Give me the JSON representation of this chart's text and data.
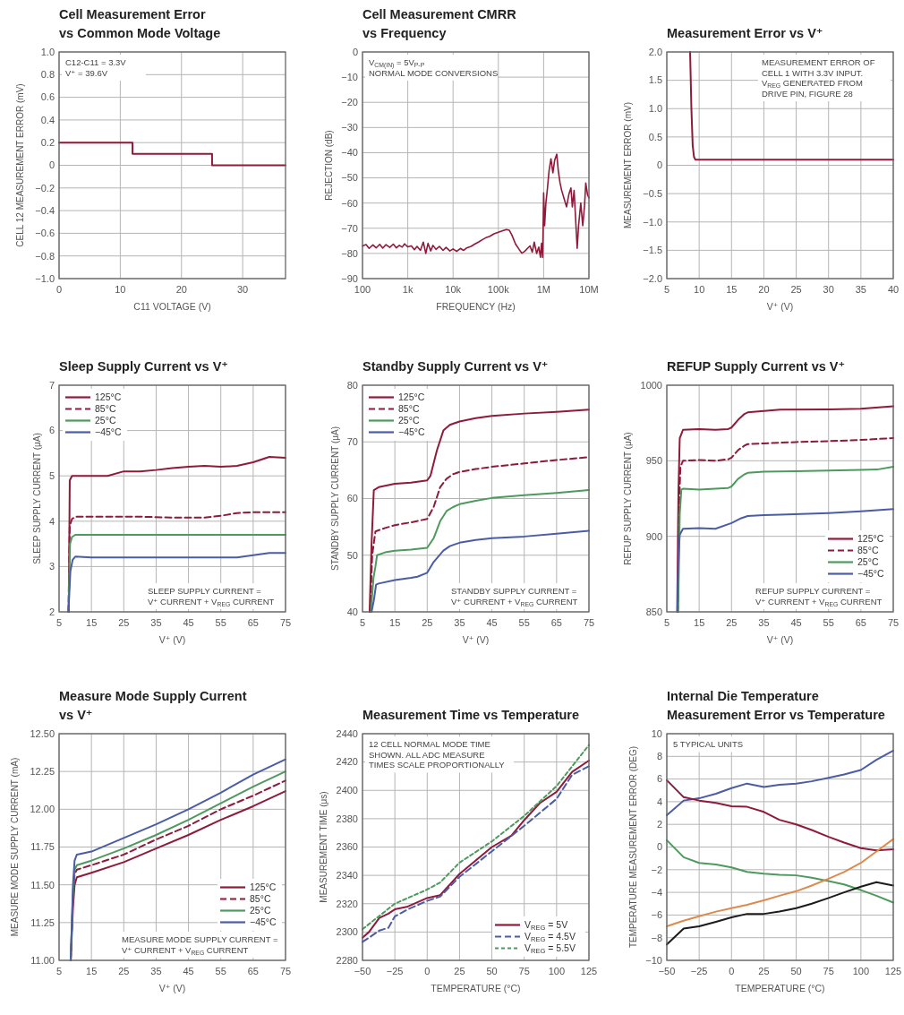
{
  "chart_data": [
    {
      "type": "step",
      "title": "Cell Measurement Error\nvs Common Mode Voltage",
      "xlabel": "C11 VOLTAGE (V)",
      "ylabel": "CELL 12 MEASUREMENT ERROR (mV)",
      "x": [
        0,
        12,
        25,
        37
      ],
      "series": [
        {
          "color": "#8e1b3b",
          "values": [
            0.2,
            0.1,
            0,
            0
          ]
        }
      ],
      "xlim": [
        0,
        37
      ],
      "xticks": [
        0,
        10,
        20,
        30
      ],
      "ylim": [
        -1,
        1
      ],
      "yticks": [
        {
          "value": 1,
          "label": "1.0"
        },
        0.8,
        0.6,
        0.4,
        0.2,
        0,
        {
          "value": -0.2,
          "label": "−0.2"
        },
        {
          "value": -0.4,
          "label": "−0.4"
        },
        {
          "value": -0.6,
          "label": "−0.6"
        },
        {
          "value": -0.8,
          "label": "−0.8"
        },
        {
          "value": -1,
          "label": "−1.0"
        }
      ],
      "grid": true,
      "annotations": [
        "C12-C11 = 3.3V\nV⁺ = 39.6V"
      ]
    },
    {
      "type": "line",
      "title": "Cell Measurement CMRR\nvs Frequency",
      "xlabel": "FREQUENCY (Hz)",
      "ylabel": "REJECTION (dB)",
      "log": "x",
      "x": [
        100,
        120,
        140,
        170,
        200,
        240,
        280,
        330,
        400,
        480,
        560,
        650,
        750,
        850,
        1000,
        1200,
        1400,
        1600,
        1900,
        2200,
        2500,
        2800,
        3200,
        3600,
        4200,
        5000,
        6000,
        7000,
        8500,
        10000,
        12000,
        14500,
        17000,
        20000,
        25000,
        30000,
        37000,
        45000,
        55000,
        65000,
        80000,
        100000,
        125000,
        150000,
        175000,
        200000,
        240000,
        290000,
        330000,
        380000,
        440000,
        500000,
        560000,
        620000,
        700000,
        780000,
        850000,
        900000,
        950000,
        1000000,
        1050000,
        1120000,
        1200000,
        1320000,
        1450000,
        1600000,
        1750000,
        1950000,
        2100000,
        2300000,
        2500000,
        2800000,
        3200000,
        3600000,
        4000000,
        4300000,
        4700000,
        5000000,
        5500000,
        5900000,
        6600000,
        7300000,
        8000000,
        8500000,
        9300000,
        10000000
      ],
      "series": [
        {
          "color": "#8e1b3b",
          "values": [
            -77,
            -76.5,
            -78,
            -76.6,
            -77.8,
            -76.4,
            -77.9,
            -76.5,
            -77.6,
            -76.3,
            -77.8,
            -76.8,
            -77.5,
            -76.2,
            -77.4,
            -77,
            -78.5,
            -77.2,
            -78.8,
            -75.5,
            -80,
            -76,
            -79,
            -76.8,
            -78.4,
            -77.2,
            -78.8,
            -77.6,
            -79,
            -78.2,
            -79.2,
            -78,
            -78.8,
            -77.8,
            -77.2,
            -76.3,
            -75.4,
            -74.5,
            -73.6,
            -73.2,
            -72.2,
            -71.6,
            -71,
            -70.5,
            -70.8,
            -72.8,
            -76.3,
            -78.5,
            -79.9,
            -79.2,
            -78,
            -77,
            -79.5,
            -75.5,
            -80,
            -77.5,
            -81.5,
            -76,
            -81.6,
            -56,
            -69,
            -60,
            -55,
            -47,
            -42.4,
            -48,
            -43,
            -40.6,
            -47,
            -52,
            -55,
            -58,
            -61.5,
            -56.6,
            -54,
            -61.5,
            -55,
            -64,
            -78,
            -69,
            -60,
            -69,
            -61,
            -52,
            -56.6,
            -58
          ]
        }
      ],
      "xlim": [
        100,
        10000000
      ],
      "xticks": [
        100,
        {
          "value": 1000,
          "label": "1k"
        },
        {
          "value": 10000,
          "label": "10k"
        },
        {
          "value": 100000,
          "label": "100k"
        },
        {
          "value": 1000000,
          "label": "1M"
        },
        {
          "value": 10000000,
          "label": "10M"
        }
      ],
      "ylim": [
        -90,
        0
      ],
      "yticks": [
        0,
        {
          "value": -10,
          "label": "−10"
        },
        {
          "value": -20,
          "label": "−20"
        },
        {
          "value": -30,
          "label": "−30"
        },
        {
          "value": -40,
          "label": "−40"
        },
        {
          "value": -50,
          "label": "−50"
        },
        {
          "value": -60,
          "label": "−60"
        },
        {
          "value": -70,
          "label": "−70"
        },
        {
          "value": -80,
          "label": "−80"
        },
        {
          "value": -90,
          "label": "−90"
        }
      ],
      "grid": true,
      "annotations": [
        "V$_{CM(IN)}$ = 5V$_{P-P}$\nNORMAL MODE CONVERSIONS"
      ]
    },
    {
      "type": "line",
      "title": "Measurement Error vs V⁺",
      "xlabel": "V⁺ (V)",
      "ylabel": "MEASUREMENT ERROR (mV)",
      "x": [
        8.6,
        8.8,
        9.0,
        9.2,
        9.4,
        40
      ],
      "series": [
        {
          "color": "#8e1b3b",
          "values": [
            2.0,
            1.0,
            0.35,
            0.15,
            0.1,
            0.1
          ]
        }
      ],
      "xlim": [
        5,
        40
      ],
      "xticks": [
        5,
        10,
        15,
        20,
        25,
        30,
        35,
        40
      ],
      "ylim": [
        -2,
        2
      ],
      "yticks": [
        {
          "value": 2,
          "label": "2.0"
        },
        1.5,
        {
          "value": 1,
          "label": "1.0"
        },
        0.5,
        0,
        {
          "value": -0.5,
          "label": "−0.5"
        },
        {
          "value": -1,
          "label": "−1.0"
        },
        {
          "value": -1.5,
          "label": "−1.5"
        },
        {
          "value": -2,
          "label": "−2.0"
        }
      ],
      "grid": true,
      "annotations": [
        "MEASUREMENT ERROR OF\nCELL 1 WITH 3.3V INPUT.\nV$_{REG}$ GENERATED FROM\nDRIVE PIN, FIGURE 28"
      ]
    },
    {
      "type": "line",
      "title": "Sleep Supply Current vs V⁺",
      "xlabel": "V⁺ (V)",
      "ylabel": "SLEEP SUPPLY CURRENT (μA)",
      "series": [
        {
          "name": "125°C",
          "color": "#8e1b3b",
          "x": [
            8.0,
            8.3,
            9,
            15,
            20,
            25,
            30,
            35,
            40,
            45,
            50,
            55,
            60,
            65,
            70,
            75
          ],
          "values": [
            2,
            4.9,
            5.0,
            5.0,
            5.0,
            5.1,
            5.1,
            5.13,
            5.17,
            5.2,
            5.22,
            5.2,
            5.22,
            5.3,
            5.42,
            5.4
          ]
        },
        {
          "name": "85°C",
          "color": "#8e1b3b",
          "line_style": "dashed",
          "x": [
            7.9,
            8.3,
            9,
            10,
            20,
            30,
            40,
            50,
            55,
            60,
            65,
            70,
            75
          ],
          "values": [
            2,
            3.9,
            4.05,
            4.1,
            4.1,
            4.1,
            4.08,
            4.08,
            4.12,
            4.18,
            4.2,
            4.2,
            4.2
          ]
        },
        {
          "name": "25°C",
          "color": "#4e9a5e",
          "x": [
            7.9,
            8.4,
            9,
            10,
            20,
            40,
            60,
            75
          ],
          "values": [
            2,
            3.5,
            3.65,
            3.7,
            3.7,
            3.7,
            3.7,
            3.7
          ]
        },
        {
          "name": "−45°C",
          "color": "#4b5ca6",
          "x": [
            7.9,
            8.5,
            9.2,
            10,
            15,
            25,
            35,
            45,
            55,
            60,
            65,
            70,
            75
          ],
          "values": [
            2,
            2.9,
            3.15,
            3.22,
            3.2,
            3.2,
            3.2,
            3.2,
            3.2,
            3.2,
            3.25,
            3.3,
            3.3
          ]
        }
      ],
      "xlim": [
        5,
        75
      ],
      "xticks": [
        5,
        15,
        25,
        35,
        45,
        55,
        65,
        75
      ],
      "ylim": [
        2,
        7
      ],
      "yticks": [
        2,
        3,
        4,
        5,
        6,
        7
      ],
      "grid": true,
      "legend": "top left",
      "annotations": [
        "SLEEP SUPPLY CURRENT =\nV⁺ CURRENT + V$_{REG}$ CURRENT"
      ]
    },
    {
      "type": "line",
      "title": "Standby Supply Current vs V⁺",
      "xlabel": "V⁺ (V)",
      "ylabel": "STANDBY SUPPLY CURRENT (μA)",
      "series": [
        {
          "name": "125°C",
          "color": "#8e1b3b",
          "x": [
            7.2,
            7.8,
            8.5,
            10,
            15,
            20,
            25,
            26,
            28,
            30,
            32,
            35,
            40,
            45,
            55,
            65,
            75
          ],
          "values": [
            40,
            52,
            61.5,
            62,
            62.6,
            62.8,
            63.2,
            64,
            68.5,
            72,
            73,
            73.6,
            74.2,
            74.6,
            75,
            75.3,
            75.7
          ]
        },
        {
          "name": "85°C",
          "color": "#8e1b3b",
          "line_style": "dashed",
          "x": [
            7.4,
            8,
            9,
            12,
            15,
            20,
            25,
            27,
            29,
            31,
            33,
            35,
            40,
            45,
            55,
            65,
            75
          ],
          "values": [
            40,
            50,
            54.2,
            54.8,
            55.3,
            55.8,
            56.4,
            58.5,
            62,
            63.5,
            64.3,
            64.7,
            65.2,
            65.6,
            66.2,
            66.8,
            67.3
          ]
        },
        {
          "name": "25°C",
          "color": "#4e9a5e",
          "x": [
            7.6,
            8.4,
            9,
            9.5,
            12,
            15,
            20,
            25,
            27,
            29,
            31,
            33,
            35,
            40,
            45,
            55,
            65,
            75
          ],
          "values": [
            40,
            46,
            48,
            50,
            50.5,
            50.8,
            51,
            51.3,
            53,
            56,
            57.8,
            58.5,
            59,
            59.6,
            60.1,
            60.6,
            61,
            61.5
          ]
        },
        {
          "name": "−45°C",
          "color": "#4b5ca6",
          "x": [
            7.8,
            8.5,
            9.2,
            10,
            15,
            20,
            22,
            25,
            27,
            30,
            32,
            35,
            40,
            45,
            55,
            65,
            75
          ],
          "values": [
            40,
            42,
            44.8,
            45,
            45.6,
            46,
            46.2,
            46.9,
            48.8,
            50.8,
            51.6,
            52.2,
            52.7,
            53,
            53.3,
            53.8,
            54.3
          ]
        }
      ],
      "xlim": [
        5,
        75
      ],
      "xticks": [
        5,
        15,
        25,
        35,
        45,
        55,
        65,
        75
      ],
      "ylim": [
        40,
        80
      ],
      "yticks": [
        40,
        50,
        60,
        70,
        80
      ],
      "grid": true,
      "legend": "top left",
      "annotations": [
        "STANDBY SUPPLY CURRENT =\nV⁺ CURRENT + V$_{REG}$ CURRENT"
      ]
    },
    {
      "type": "line",
      "title": "REFUP Supply Current vs V⁺",
      "xlabel": "V⁺ (V)",
      "ylabel": "REFUP SUPPLY CURRENT (μA)",
      "series": [
        {
          "name": "125°C",
          "color": "#8e1b3b",
          "x": [
            8.2,
            8.6,
            9,
            10,
            15,
            20,
            24,
            25,
            27,
            29,
            30,
            35,
            40,
            55,
            65,
            75
          ],
          "values": [
            850,
            930,
            965,
            970.5,
            971,
            970.5,
            971,
            972,
            977,
            981,
            982,
            983,
            983.8,
            984,
            984.5,
            986
          ]
        },
        {
          "name": "85°C",
          "color": "#8e1b3b",
          "line_style": "dashed",
          "x": [
            8.4,
            8.8,
            9.2,
            10,
            15,
            20,
            24,
            25,
            27,
            29,
            30,
            35,
            45,
            55,
            65,
            75
          ],
          "values": [
            850,
            920,
            946,
            950,
            950.5,
            950,
            951,
            952,
            957,
            960,
            961,
            961.5,
            962.4,
            963,
            963.8,
            965
          ]
        },
        {
          "name": "25°C",
          "color": "#4e9a5e",
          "x": [
            8.5,
            9,
            9.5,
            10,
            15,
            20,
            24,
            25,
            27,
            29,
            30,
            35,
            45,
            55,
            65,
            70,
            75
          ],
          "values": [
            850,
            915,
            931,
            931.5,
            931,
            931.5,
            932,
            933,
            938,
            941,
            942,
            942.8,
            943.1,
            943.6,
            944,
            944.2,
            946
          ]
        },
        {
          "name": "−45°C",
          "color": "#4b5ca6",
          "x": [
            8.3,
            8.4,
            8.7,
            9,
            10,
            15,
            20,
            25,
            28,
            30,
            35,
            40,
            55,
            65,
            75
          ],
          "values": [
            850,
            870,
            890,
            901,
            905,
            905.5,
            905,
            908.8,
            912,
            913.4,
            914,
            914.4,
            915.4,
            916.5,
            918
          ]
        }
      ],
      "xlim": [
        5,
        75
      ],
      "xticks": [
        5,
        15,
        25,
        35,
        45,
        55,
        65,
        75
      ],
      "ylim": [
        850,
        1000
      ],
      "yticks": [
        850,
        900,
        950,
        1000
      ],
      "grid": true,
      "legend": "bottom right",
      "annotations": [
        "REFUP SUPPLY CURRENT =\nV⁺ CURRENT + V$_{REG}$ CURRENT"
      ]
    },
    {
      "type": "line",
      "title": "Measure Mode Supply Current\nvs V⁺",
      "xlabel": "V⁺ (V)",
      "ylabel": "MEASURE MODE SUPPLY CURRENT (mA)",
      "x": [
        8.6,
        9.3,
        9.8,
        10.5,
        15,
        25,
        35,
        45,
        55,
        65,
        75
      ],
      "series": [
        {
          "name": "125°C",
          "color": "#8e1b3b",
          "values": [
            11,
            11.35,
            11.5,
            11.55,
            11.58,
            11.65,
            11.74,
            11.83,
            11.93,
            12.02,
            12.12
          ]
        },
        {
          "name": "85°C",
          "color": "#8e1b3b",
          "line_style": "dashed",
          "values": [
            11,
            11.42,
            11.57,
            11.6,
            11.63,
            11.7,
            11.8,
            11.89,
            12.0,
            12.09,
            12.19
          ]
        },
        {
          "name": "25°C",
          "color": "#4e9a5e",
          "values": [
            11,
            11.45,
            11.6,
            11.63,
            11.66,
            11.74,
            11.83,
            11.93,
            12.04,
            12.15,
            12.25
          ]
        },
        {
          "name": "−45°C",
          "color": "#4b5ca6",
          "values": [
            11,
            11.5,
            11.66,
            11.7,
            11.72,
            11.81,
            11.9,
            12.0,
            12.11,
            12.23,
            12.33
          ]
        }
      ],
      "xlim": [
        5,
        75
      ],
      "xticks": [
        5,
        15,
        25,
        35,
        45,
        55,
        65,
        75
      ],
      "ylim": [
        11,
        12.5
      ],
      "yticks": [
        {
          "value": 11,
          "label": "11.00"
        },
        11.25,
        {
          "value": 11.5,
          "label": "11.50"
        },
        11.75,
        {
          "value": 12,
          "label": "12.00"
        },
        12.25,
        {
          "value": 12.5,
          "label": "12.50"
        }
      ],
      "grid": true,
      "legend": "bottom right",
      "annotations": [
        "MEASURE MODE SUPPLY CURRENT =\nV⁺ CURRENT + V$_{REG}$ CURRENT"
      ]
    },
    {
      "type": "line",
      "title": "Measurement Time vs Temperature",
      "xlabel": "TEMPERATURE (°C)",
      "ylabel": "MEASUREMENT TIME (μs)",
      "series": [
        {
          "name": "V$_{REG}$ = 5V",
          "color": "#8e1b3b",
          "x": [
            -50,
            -45,
            -37,
            -30,
            -25,
            -15,
            0,
            10,
            25,
            50,
            65,
            75,
            87,
            100,
            112,
            125
          ],
          "values": [
            2296,
            2300,
            2310,
            2313,
            2316,
            2318,
            2324,
            2326,
            2341,
            2360,
            2368,
            2379,
            2391,
            2399,
            2413,
            2421
          ]
        },
        {
          "name": "V$_{REG}$ = 4.5V",
          "color": "#4b5ca6",
          "line_style": "dashed",
          "x": [
            -50,
            -45,
            -37,
            -30,
            -25,
            -15,
            0,
            10,
            25,
            50,
            75,
            100,
            112,
            125
          ],
          "values": [
            2293,
            2296,
            2301,
            2303,
            2311,
            2316,
            2322,
            2325,
            2339,
            2357,
            2375,
            2394,
            2411,
            2417
          ]
        },
        {
          "name": "V$_{REG}$ = 5.5V",
          "color": "#4e9a5e",
          "line_style": "dashed",
          "x": [
            -50,
            -25,
            0,
            10,
            25,
            50,
            75,
            100,
            125
          ],
          "values": [
            2302,
            2320,
            2330,
            2335,
            2349,
            2364,
            2382,
            2403,
            2432
          ]
        }
      ],
      "xlim": [
        -50,
        125
      ],
      "xticks": [
        {
          "value": -50,
          "label": "−50"
        },
        {
          "value": -25,
          "label": "−25"
        },
        0,
        25,
        50,
        75,
        100,
        125
      ],
      "ylim": [
        2280,
        2440
      ],
      "yticks": [
        2280,
        2300,
        2320,
        2340,
        2360,
        2380,
        2400,
        2420,
        2440
      ],
      "grid": true,
      "legend": "bottom right",
      "annotations": [
        "12 CELL NORMAL MODE TIME\nSHOWN. ALL ADC MEASURE\nTIMES SCALE PROPORTIONALLY"
      ]
    },
    {
      "type": "line",
      "title": "Internal Die Temperature\nMeasurement Error vs Temperature",
      "xlabel": "TEMPERATURE (°C)",
      "ylabel": "TEMPERATURE MEASUREMENT ERROR (DEG)",
      "x": [
        -50,
        -37,
        -25,
        -12,
        0,
        12,
        25,
        37,
        50,
        62,
        75,
        87,
        100,
        112,
        125
      ],
      "series": [
        {
          "color": "#4b5ca6",
          "values": [
            2.8,
            4.1,
            4.3,
            4.7,
            5.2,
            5.6,
            5.3,
            5.5,
            5.6,
            5.8,
            6.1,
            6.4,
            6.8,
            7.7,
            8.5
          ]
        },
        {
          "color": "#8e1b3b",
          "values": [
            5.9,
            4.4,
            4.1,
            3.9,
            3.6,
            3.55,
            3.1,
            2.4,
            2.0,
            1.5,
            0.9,
            0.4,
            -0.1,
            -0.3,
            -0.2
          ]
        },
        {
          "color": "#4e9a5e",
          "values": [
            0.6,
            -0.9,
            -1.4,
            -1.55,
            -1.8,
            -2.2,
            -2.35,
            -2.45,
            -2.5,
            -2.7,
            -3.0,
            -3.3,
            -3.8,
            -4.3,
            -4.9
          ]
        },
        {
          "color": "#dd8a4f",
          "values": [
            -7.0,
            -6.5,
            -6.1,
            -5.7,
            -5.4,
            -5.1,
            -4.7,
            -4.3,
            -3.9,
            -3.4,
            -2.8,
            -2.2,
            -1.4,
            -0.4,
            0.7
          ]
        },
        {
          "color": "#1b1b1b",
          "values": [
            -8.6,
            -7.2,
            -7.0,
            -6.6,
            -6.2,
            -5.9,
            -5.9,
            -5.7,
            -5.4,
            -5.0,
            -4.5,
            -4.0,
            -3.5,
            -3.1,
            -3.4
          ]
        }
      ],
      "xlim": [
        -50,
        125
      ],
      "xticks": [
        {
          "value": -50,
          "label": "−50"
        },
        {
          "value": -25,
          "label": "−25"
        },
        0,
        25,
        50,
        75,
        100,
        125
      ],
      "ylim": [
        -10,
        10
      ],
      "yticks": [
        {
          "value": -10,
          "label": "−10"
        },
        {
          "value": -8,
          "label": "−8"
        },
        {
          "value": -6,
          "label": "−6"
        },
        {
          "value": -4,
          "label": "−4"
        },
        {
          "value": -2,
          "label": "−2"
        },
        0,
        2,
        4,
        6,
        8,
        10
      ],
      "grid": true,
      "annotations": [
        "5 TYPICAL UNITS"
      ]
    }
  ]
}
